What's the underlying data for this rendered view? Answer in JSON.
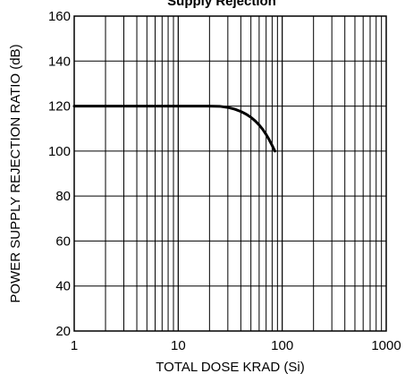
{
  "chart_data": {
    "type": "line",
    "title": "Supply Rejection",
    "xlabel": "TOTAL DOSE KRAD (Si)",
    "ylabel": "POWER SUPPLY REJECTION RATIO (dB)",
    "x_scale": "log",
    "y_scale": "linear",
    "xlim": [
      1,
      1000
    ],
    "ylim": [
      20,
      160
    ],
    "grid": true,
    "x_ticks": [
      1,
      10,
      100,
      1000
    ],
    "x_tick_labels": [
      "1",
      "10",
      "100",
      "1000"
    ],
    "y_ticks": [
      20,
      40,
      60,
      80,
      100,
      120,
      140,
      160
    ],
    "y_tick_labels": [
      "20",
      "40",
      "60",
      "80",
      "100",
      "120",
      "140",
      "160"
    ],
    "series": [
      {
        "x": [
          1,
          5,
          10,
          15,
          20,
          25,
          30,
          35,
          40,
          45,
          50,
          55,
          60,
          65,
          70,
          75,
          80,
          85
        ],
        "y": [
          120,
          120,
          120,
          120,
          120,
          119.9,
          119.4,
          118.6,
          117.6,
          116.4,
          115.0,
          113.4,
          111.6,
          109.6,
          107.4,
          105.0,
          102.5,
          100
        ]
      }
    ]
  }
}
